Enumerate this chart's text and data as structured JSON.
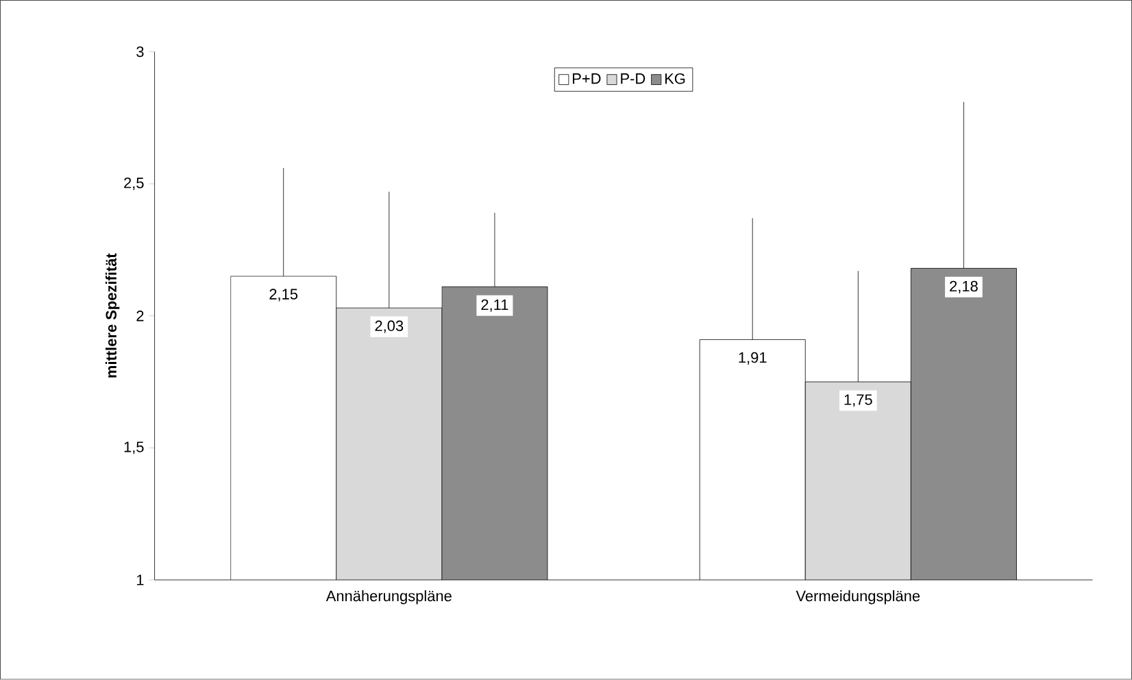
{
  "chart_data": {
    "type": "bar",
    "ylabel": "mittlere Spezifität",
    "categories": [
      "Annäherungspläne",
      "Vermeidungspläne"
    ],
    "ylim": [
      1,
      3
    ],
    "yticks": [
      1,
      {
        "value": 1.5,
        "label": "1,5"
      },
      2,
      {
        "value": 2.5,
        "label": "2,5"
      },
      3
    ],
    "legend": "top",
    "grid": false,
    "series": [
      {
        "name": "P+D",
        "color": "#ffffff",
        "values": [
          2.15,
          1.91
        ],
        "value_labels": [
          "2,15",
          "1,91"
        ],
        "errors": [
          [
            2.15,
            2.56
          ],
          [
            1.91,
            2.37
          ]
        ]
      },
      {
        "name": "P-D",
        "color": "#d9d9d9",
        "values": [
          2.03,
          1.75
        ],
        "value_labels": [
          "2,03",
          "1,75"
        ],
        "errors": [
          [
            2.03,
            2.47
          ],
          [
            1.75,
            2.17
          ]
        ]
      },
      {
        "name": "KG",
        "color": "#8c8c8c",
        "values": [
          2.11,
          2.18
        ],
        "value_labels": [
          "2,11",
          "2,18"
        ],
        "errors": [
          [
            2.11,
            2.39
          ],
          [
            2.18,
            2.81
          ]
        ]
      }
    ]
  }
}
